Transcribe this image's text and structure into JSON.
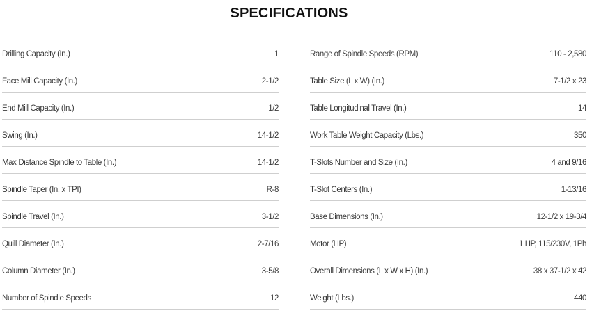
{
  "title": "SPECIFICATIONS",
  "left_specs": [
    {
      "label": "Drilling Capacity (In.)",
      "value": "1"
    },
    {
      "label": "Face Mill Capacity (In.)",
      "value": "2-1/2"
    },
    {
      "label": "End Mill Capacity (In.)",
      "value": "1/2"
    },
    {
      "label": "Swing (In.)",
      "value": "14-1/2"
    },
    {
      "label": "Max Distance Spindle to Table (In.)",
      "value": "14-1/2"
    },
    {
      "label": "Spindle Taper (In. x TPI)",
      "value": "R-8"
    },
    {
      "label": "Spindle Travel (In.)",
      "value": "3-1/2"
    },
    {
      "label": "Quill Diameter (In.)",
      "value": "2-7/16"
    },
    {
      "label": "Column Diameter (In.)",
      "value": "3-5/8"
    },
    {
      "label": "Number of Spindle Speeds",
      "value": "12"
    }
  ],
  "right_specs": [
    {
      "label": "Range of Spindle Speeds (RPM)",
      "value": "110 - 2,580"
    },
    {
      "label": "Table Size (L x W) (In.)",
      "value": "7-1/2 x 23"
    },
    {
      "label": "Table Longitudinal Travel (In.)",
      "value": "14"
    },
    {
      "label": "Work Table Weight Capacity (Lbs.)",
      "value": "350"
    },
    {
      "label": "T-Slots Number and Size (In.)",
      "value": "4 and 9/16"
    },
    {
      "label": "T-Slot Centers (In.)",
      "value": "1-13/16"
    },
    {
      "label": "Base Dimensions (In.)",
      "value": "12-1/2 x 19-3/4"
    },
    {
      "label": "Motor (HP)",
      "value": "1 HP, 115/230V, 1Ph"
    },
    {
      "label": "Overall Dimensions (L x W x H) (In.)",
      "value": "38 x 37-1/2 x 42"
    },
    {
      "label": "Weight (Lbs.)",
      "value": "440"
    }
  ]
}
